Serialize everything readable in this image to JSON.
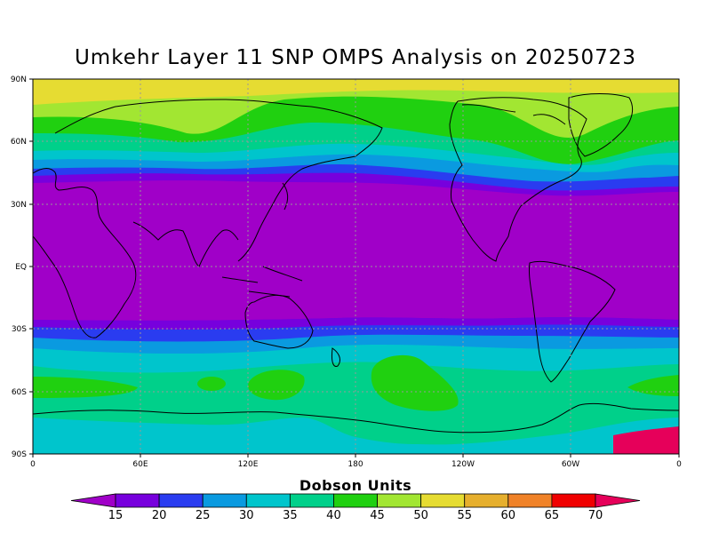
{
  "title": "Umkehr Layer 11 SNP OMPS Analysis on 20250723",
  "colorbar": {
    "title": "Dobson Units",
    "levels": [
      "15",
      "20",
      "25",
      "30",
      "35",
      "40",
      "45",
      "50",
      "55",
      "60",
      "65",
      "70"
    ],
    "colors": [
      "#a000c8",
      "#7700dd",
      "#2a3cf0",
      "#0a9ae0",
      "#00c5cc",
      "#00d08a",
      "#20d010",
      "#a2e632",
      "#e6dc32",
      "#e6af2d",
      "#f08228",
      "#f00000",
      "#e6005a"
    ]
  },
  "axes": {
    "lat_labels": [
      "90N",
      "60N",
      "30N",
      "EQ",
      "30S",
      "60S",
      "90S"
    ],
    "lon_labels": [
      "0",
      "60E",
      "120E",
      "180",
      "120W",
      "60W",
      "0"
    ]
  }
}
